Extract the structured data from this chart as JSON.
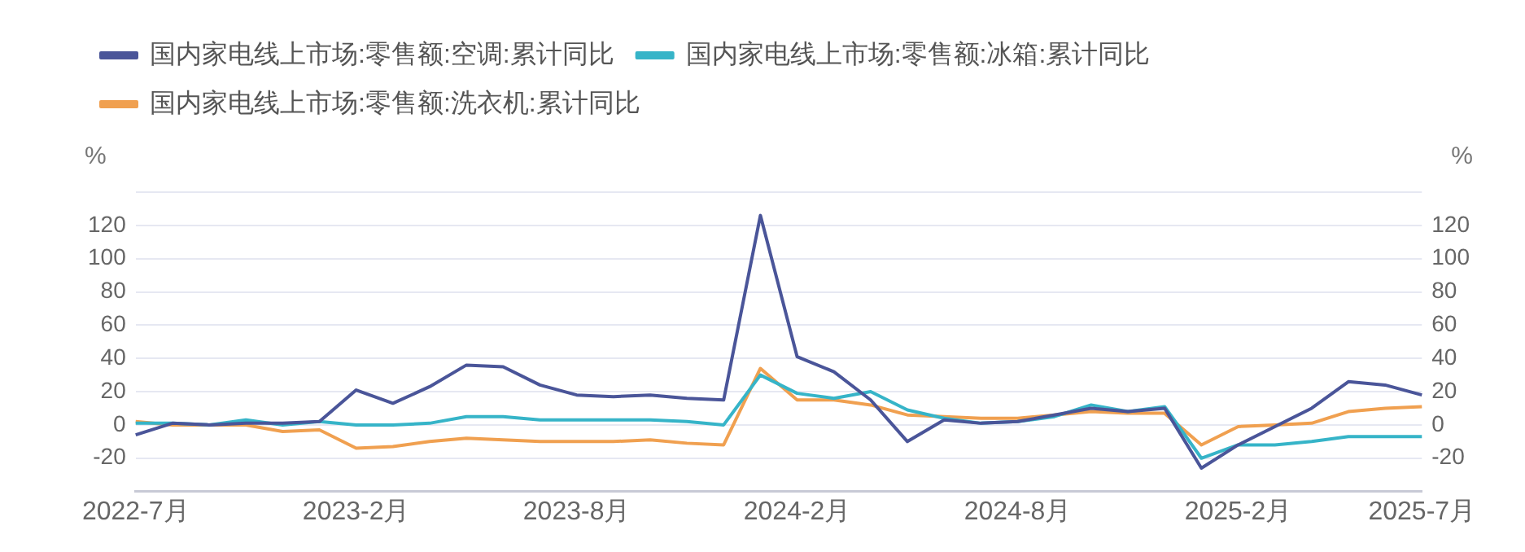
{
  "chart_data": {
    "type": "line",
    "ylabel": "%",
    "y2label": "%",
    "legend": "top left",
    "grid": "y",
    "marker": "none",
    "line_style": "solid",
    "categories": [
      "2022-7月",
      null,
      null,
      null,
      null,
      null,
      "2023-2月",
      null,
      null,
      null,
      null,
      null,
      "2023-8月",
      null,
      null,
      null,
      null,
      null,
      "2024-2月",
      null,
      null,
      null,
      null,
      null,
      "2024-8月",
      null,
      null,
      null,
      null,
      null,
      "2025-2月",
      null,
      null,
      null,
      null,
      "2025-7月"
    ],
    "ylim": [
      -40,
      140
    ],
    "yticks": [
      {
        "value": -40,
        "label": null
      },
      -20,
      0,
      20,
      40,
      60,
      80,
      100,
      120,
      {
        "value": 140,
        "label": null
      }
    ],
    "y2lim": [
      -40,
      140
    ],
    "y2ticks": [
      {
        "value": -40,
        "label": null
      },
      -20,
      0,
      20,
      40,
      60,
      80,
      100,
      120,
      {
        "value": 140,
        "label": null
      }
    ],
    "series": [
      {
        "name": "国内家电线上市场:零售额:空调:累计同比",
        "color": "#4a5599",
        "values": [
          -6,
          1,
          0,
          1,
          1,
          2,
          21,
          13,
          23,
          36,
          35,
          24,
          18,
          17,
          18,
          16,
          15,
          126,
          41,
          32,
          15,
          -10,
          3,
          1,
          2,
          6,
          10,
          8,
          10,
          -26,
          -12,
          -1,
          10,
          26,
          24,
          18
        ]
      },
      {
        "name": "国内家电线上市场:零售额:冰箱:累计同比",
        "color": "#36b4c8",
        "values": [
          1,
          1,
          0,
          3,
          0,
          2,
          0,
          0,
          1,
          5,
          5,
          3,
          3,
          3,
          3,
          2,
          0,
          30,
          19,
          16,
          20,
          9,
          4,
          1,
          2,
          5,
          12,
          8,
          11,
          -20,
          -12,
          -12,
          -10,
          -7,
          -7,
          -7
        ]
      },
      {
        "name": "国内家电线上市场:零售额:洗衣机:累计同比",
        "color": "#f0a050",
        "values": [
          2,
          0,
          0,
          0,
          -4,
          -3,
          -14,
          -13,
          -10,
          -8,
          -9,
          -10,
          -10,
          -10,
          -9,
          -11,
          -12,
          34,
          15,
          15,
          12,
          6,
          5,
          4,
          4,
          6,
          8,
          7,
          7,
          -12,
          -1,
          0,
          1,
          8,
          10,
          11
        ]
      }
    ]
  }
}
